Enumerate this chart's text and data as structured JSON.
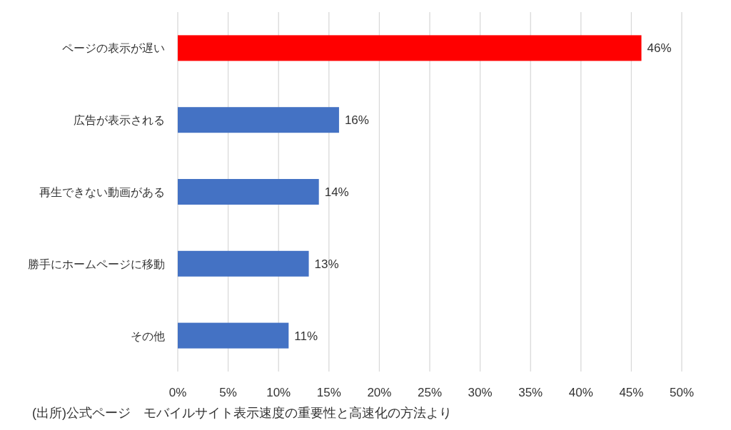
{
  "chart_data": {
    "type": "bar",
    "orientation": "horizontal",
    "categories": [
      "ページの表示が遅い",
      "広告が表示される",
      "再生できない動画がある",
      "勝手にホームページに移動",
      "その他"
    ],
    "values": [
      46,
      16,
      14,
      13,
      11
    ],
    "colors": [
      "#ff0000",
      "#4472c4",
      "#4472c4",
      "#4472c4",
      "#4472c4"
    ],
    "value_labels": [
      "46%",
      "16%",
      "14%",
      "13%",
      "11%"
    ],
    "xlim": [
      0,
      50
    ],
    "xticks": [
      {
        "value": 0,
        "label": "0%"
      },
      {
        "value": 5,
        "label": "5%"
      },
      {
        "value": 10,
        "label": "10%"
      },
      {
        "value": 15,
        "label": "15%"
      },
      {
        "value": 20,
        "label": "20%"
      },
      {
        "value": 25,
        "label": "25%"
      },
      {
        "value": 30,
        "label": "30%"
      },
      {
        "value": 35,
        "label": "35%"
      },
      {
        "value": 40,
        "label": "40%"
      },
      {
        "value": 45,
        "label": "45%"
      },
      {
        "value": 50,
        "label": "50%"
      }
    ],
    "grid": "x",
    "annotations": [
      "(出所)公式ページ　モバイルサイト表示速度の重要性と高速化の方法より"
    ]
  }
}
